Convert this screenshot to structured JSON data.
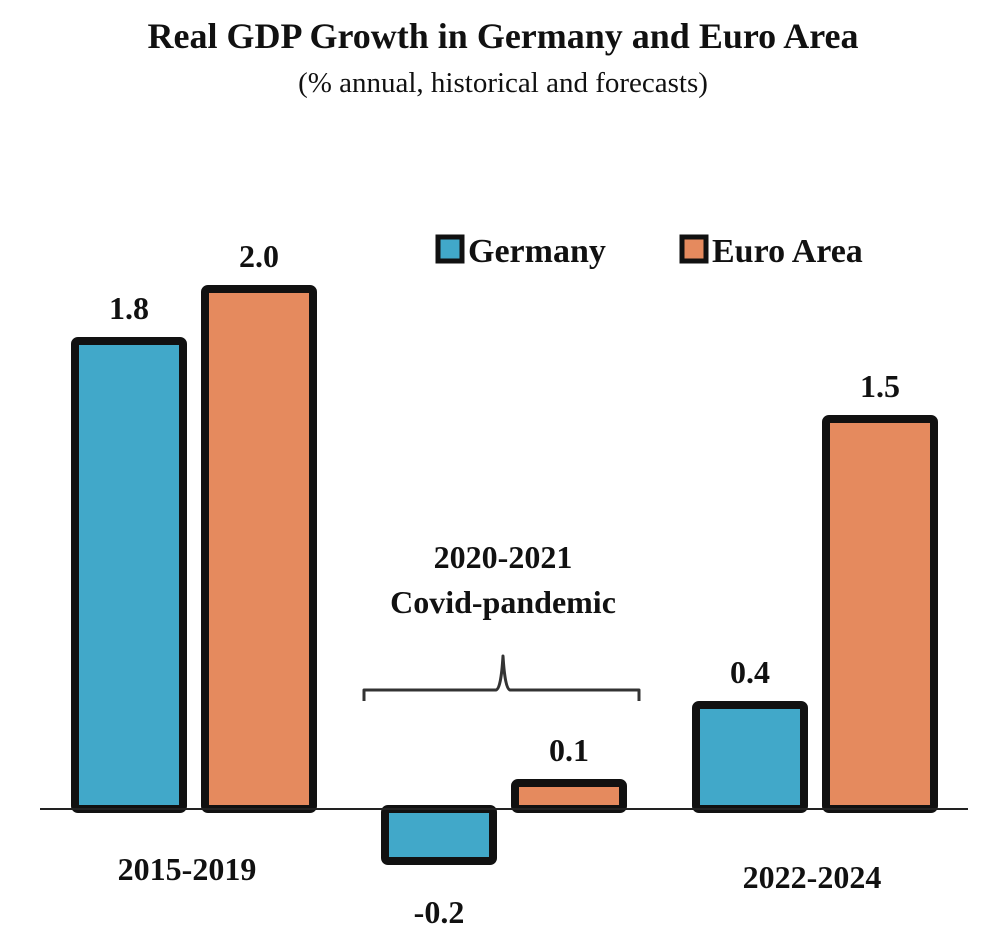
{
  "chart_data": {
    "type": "bar",
    "title": "Real GDP Growth in Germany and Euro Area",
    "subtitle": "(% annual, historical and forecasts)",
    "xlabel": "",
    "ylabel": "",
    "ylim": [
      -0.2,
      2.0
    ],
    "grid": false,
    "legend_position": "top-right",
    "categories": [
      "2015-2019",
      "2020-2021",
      "2022-2024"
    ],
    "category_labels_shown": [
      "2015-2019",
      "",
      "2022-2024"
    ],
    "series": [
      {
        "name": "Germany",
        "color": "#41a8c9",
        "values": [
          1.8,
          -0.2,
          0.4
        ],
        "labels": [
          "1.8",
          "-0.2",
          "0.4"
        ]
      },
      {
        "name": "Euro Area",
        "color": "#e58a5e",
        "values": [
          2.0,
          0.1,
          1.5
        ],
        "labels": [
          "2.0",
          "0.1",
          "1.5"
        ]
      }
    ],
    "annotation": {
      "line1": "2020-2021",
      "line2": "Covid-pandemic",
      "category_index": 1
    }
  },
  "colors": {
    "germany": "#41a8c9",
    "euro_area": "#e58a5e",
    "outline": "#111111",
    "text": "#111111"
  }
}
